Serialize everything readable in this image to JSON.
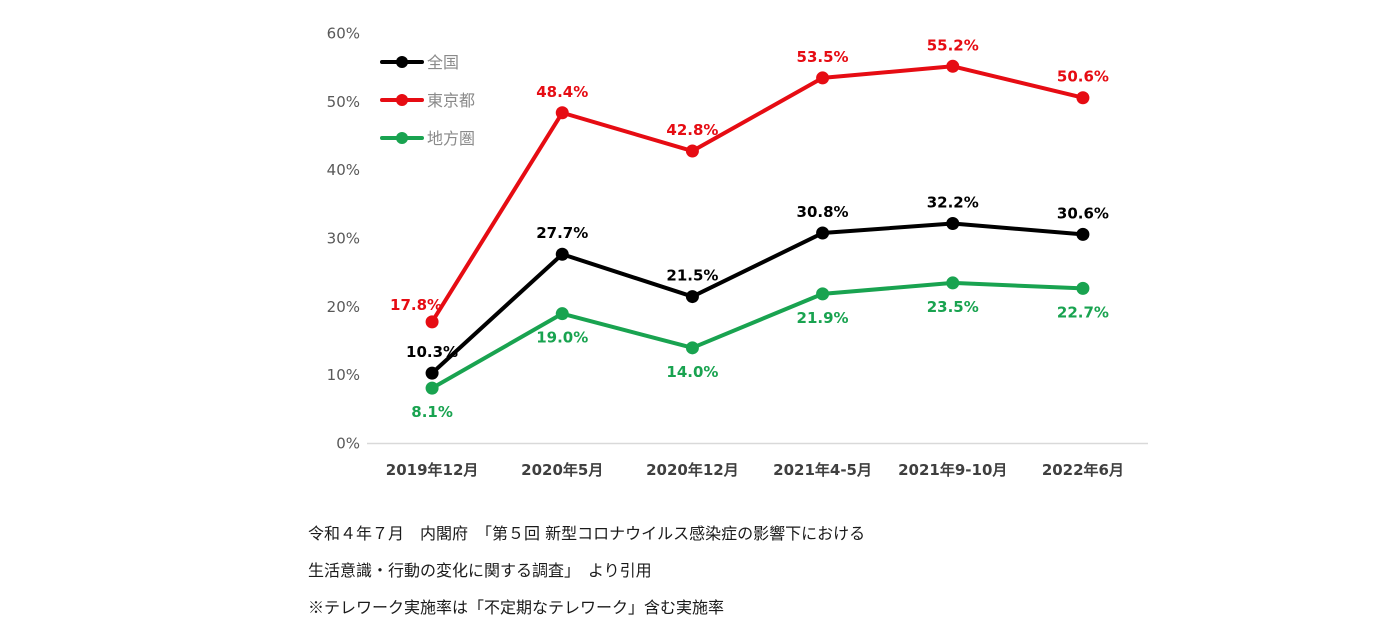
{
  "chart_data": {
    "type": "line",
    "title": "",
    "categories": [
      "2019年12月",
      "2020年5月",
      "2020年12月",
      "2021年4-5月",
      "2021年9-10月",
      "2022年6月"
    ],
    "series": [
      {
        "name": "全国",
        "color": "#000000",
        "values": [
          10.3,
          27.7,
          21.5,
          30.8,
          32.2,
          30.6
        ],
        "label_placement": "above"
      },
      {
        "name": "東京都",
        "color": "#e60c13",
        "values": [
          17.8,
          48.4,
          42.8,
          53.5,
          55.2,
          50.6
        ],
        "label_placement": "above",
        "label_offsets": [
          [
            -16,
            4
          ],
          [
            0,
            0
          ],
          [
            0,
            0
          ],
          [
            0,
            0
          ],
          [
            0,
            0
          ],
          [
            0,
            0
          ]
        ]
      },
      {
        "name": "地方圏",
        "color": "#19a350",
        "values": [
          8.1,
          19.0,
          14.0,
          21.9,
          23.5,
          22.7
        ],
        "label_placement": "below"
      }
    ],
    "yticks": [
      "0%",
      "10%",
      "20%",
      "30%",
      "40%",
      "50%",
      "60%"
    ],
    "ylim": [
      0,
      60
    ],
    "grid": false,
    "legend_position": "inside-top-left",
    "colors": {
      "background": "#ffffff",
      "axis_line": "#d9d9d9",
      "tick_label": "#595959",
      "category_label": "#3f3f3f",
      "legend_text": "#8a8a8a"
    }
  },
  "footer": {
    "line1": "令和４年７月　内閣府　「第５回 新型コロナウイルス感染症の影響下における",
    "line2": "生活意識・行動の変化に関する調査」　より引用",
    "line3": "※テレワーク実施率は「不定期なテレワーク」含む実施率"
  }
}
